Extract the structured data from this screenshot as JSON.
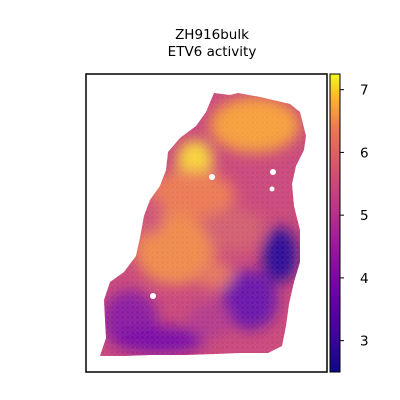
{
  "chart_data": {
    "type": "heatmap",
    "title": "ZH916bulk",
    "subtitle": "ETV6 activity",
    "xlabel": "",
    "ylabel": "",
    "colormap": "plasma",
    "colorbar": {
      "range": [
        2.5,
        7.25
      ],
      "ticks": [
        3,
        4,
        5,
        6,
        7
      ],
      "tick_labels": [
        "3",
        "4",
        "5",
        "6",
        "7"
      ]
    },
    "grid": false,
    "regions": [
      {
        "name": "upper-right lobe",
        "value": 6.6
      },
      {
        "name": "upper-left bright spot",
        "value": 7.1
      },
      {
        "name": "central band",
        "value": 5.6
      },
      {
        "name": "right-middle dark patch",
        "value": 2.7
      },
      {
        "name": "lower-left region",
        "value": 3.8
      },
      {
        "name": "bottom edge",
        "value": 3.3
      }
    ]
  }
}
